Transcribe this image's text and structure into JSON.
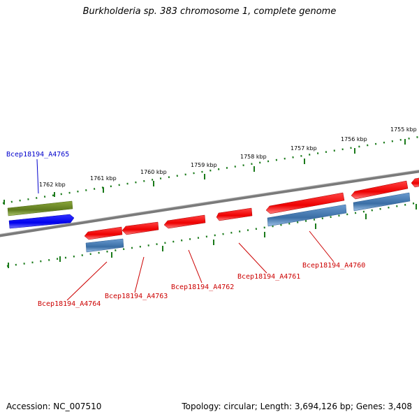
{
  "title": "Burkholderia sp. 383 chromosome 1, complete genome",
  "footer": {
    "accession": "Accession: NC_007510",
    "topology": "Topology: circular; Length: 3,694,126 bp; Genes: 3,408"
  },
  "scale_labels": [
    "1755 kbp",
    "1756 kbp",
    "1757 kbp",
    "1758 kbp",
    "1759 kbp",
    "1760 kbp",
    "1761 kbp",
    "1762 kbp"
  ],
  "gene_labels": [
    {
      "label": "Bcep18194_A4765",
      "color": "#0000cc"
    },
    {
      "label": "Bcep18194_A4764",
      "color": "#cc0000"
    },
    {
      "label": "Bcep18194_A4763",
      "color": "#cc0000"
    },
    {
      "label": "Bcep18194_A4762",
      "color": "#cc0000"
    },
    {
      "label": "Bcep18194_A4761",
      "color": "#cc0000"
    },
    {
      "label": "Bcep18194_A4760",
      "color": "#cc0000"
    }
  ],
  "colors": {
    "cds_forward": "#ff0000",
    "gene_blue": "#0000ff",
    "gene_steel": "#4f81bd",
    "gene_olive": "#6b8e23",
    "backbone": "#808080",
    "ticks": "#1a7a1a"
  }
}
